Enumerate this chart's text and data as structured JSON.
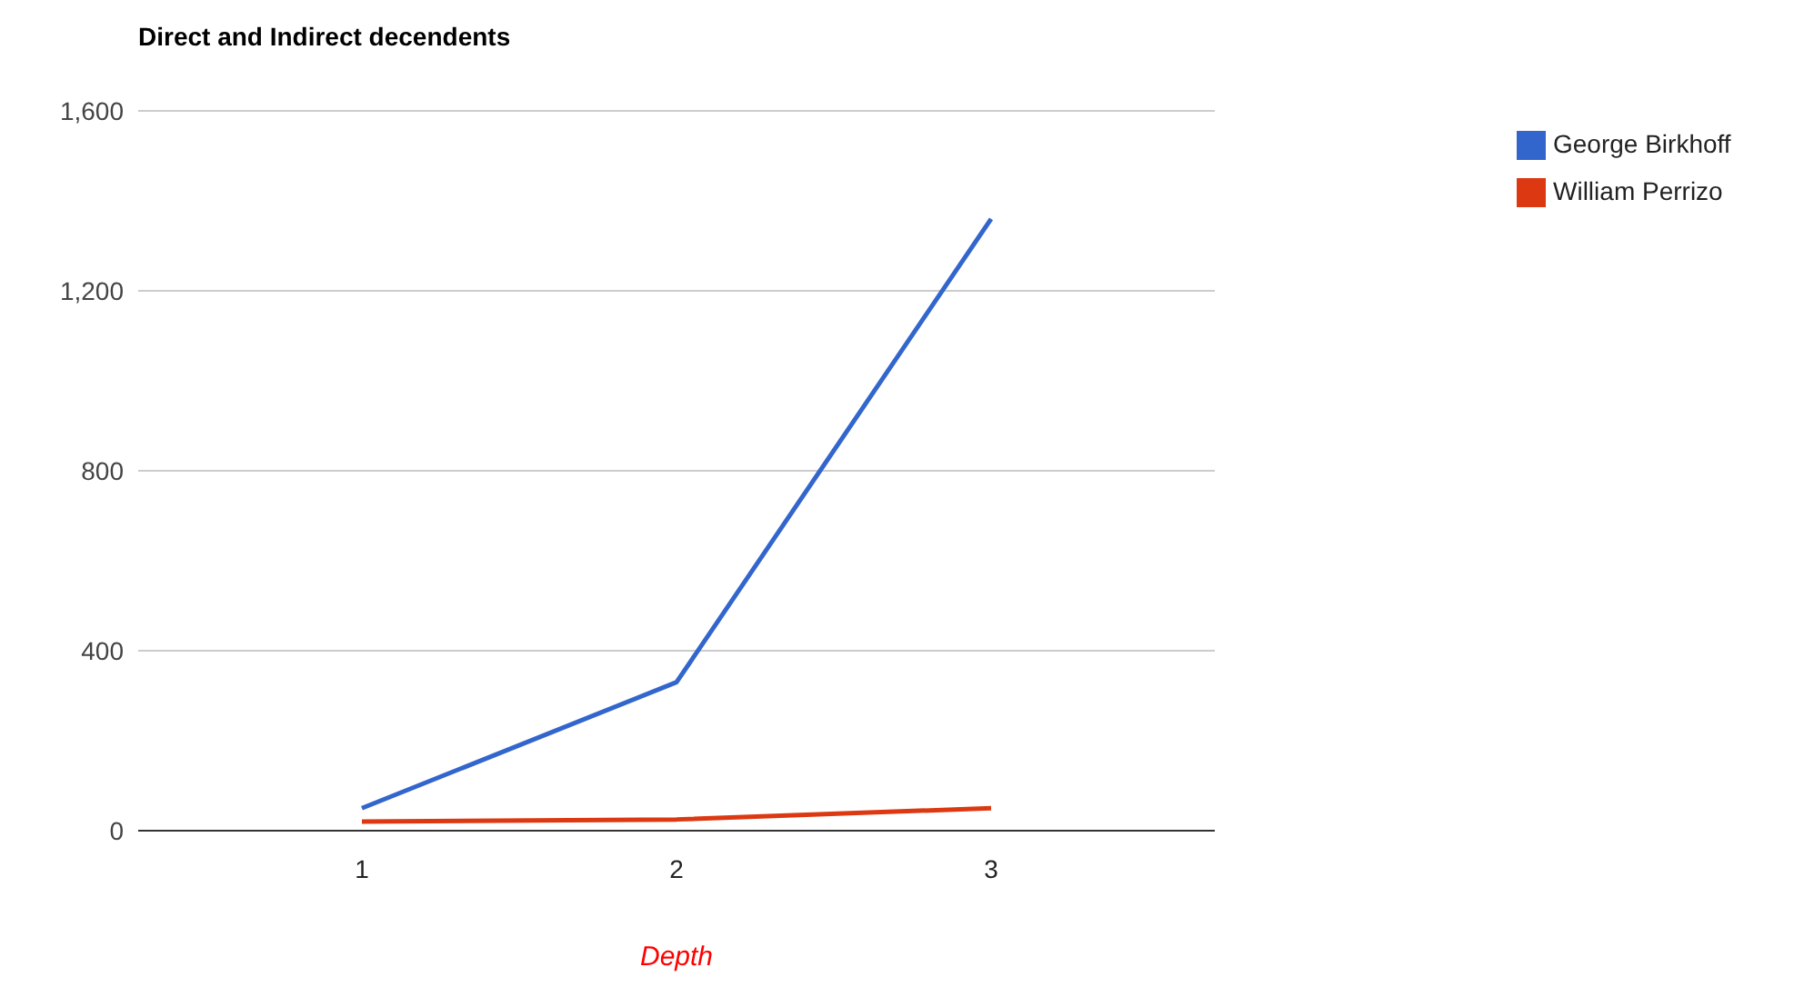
{
  "chart_data": {
    "type": "line",
    "title": "Direct and Indirect decendents",
    "xlabel": "Depth",
    "categories": [
      "1",
      "2",
      "3"
    ],
    "series": [
      {
        "name": "George Birkhoff",
        "color": "#3366cc",
        "values": [
          50,
          330,
          1360
        ]
      },
      {
        "name": "William Perrizo",
        "color": "#dc3912",
        "values": [
          20,
          25,
          50
        ]
      }
    ],
    "ylim": [
      0,
      1600
    ],
    "yticks": [
      0,
      400,
      800,
      {
        "value": 1200,
        "label": "1,200"
      },
      {
        "value": 1600,
        "label": "1,600"
      }
    ],
    "grid": "y",
    "legend": "top right",
    "marker": "none"
  }
}
